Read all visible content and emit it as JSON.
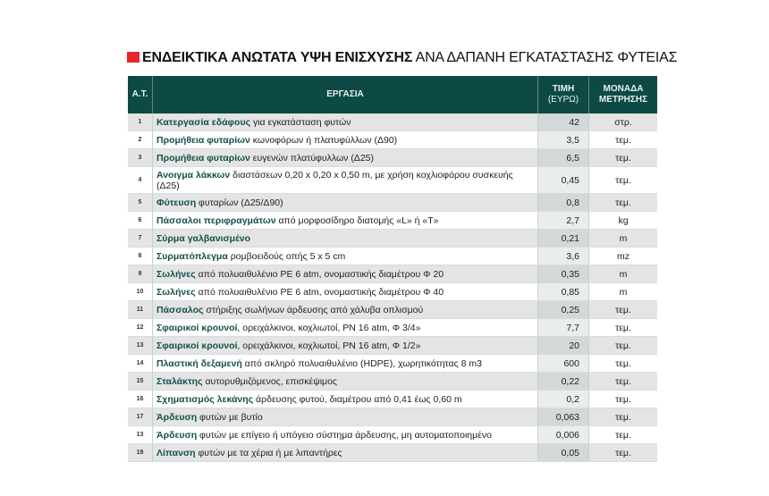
{
  "title": {
    "bold": "ΕΝΔΕΙΚΤΙΚΑ ΑΝΩΤΑΤΑ ΥΨΗ ΕΝΙΣΧΥΣΗΣ",
    "regular": "ΑΝΑ ΔΑΠΑΝΗ ΕΓΚΑΤΑΣΤΑΣΗΣ ΦΥΤΕΙΑΣ",
    "accent": "#e8262b"
  },
  "header": {
    "at": "Α.Τ.",
    "task": "ΕΡΓΑΣΙΑ",
    "price_line1": "ΤΙΜΗ",
    "price_line2": "(ΕΥΡΩ)",
    "unit_line1": "ΜΟΝΑΔΑ",
    "unit_line2": "ΜΕΤΡΗΣΗΣ"
  },
  "rows": [
    {
      "num": "1",
      "bold": "Κατεργασία εδάφους",
      "rest": " για εγκατάσταση φυτών",
      "price": "42",
      "unit": "στρ."
    },
    {
      "num": "2",
      "bold": "Προμήθεια φυταρίων",
      "rest": " κωνοφόρων ή πλατυφύλλων (Δ90)",
      "price": "3,5",
      "unit": "τεμ."
    },
    {
      "num": "3",
      "bold": "Προμήθεια φυταρίων",
      "rest": " ευγενών πλατύφυλλων (Δ25)",
      "price": "6,5",
      "unit": "τεμ."
    },
    {
      "num": "4",
      "bold": "Ανοιγμα λάκκων",
      "rest": " διαστάσεων 0,20 x 0,20 x 0,50 m, με χρήση κοχλιοφόρου συσκευής (Δ25)",
      "price": "0,45",
      "unit": "τεμ."
    },
    {
      "num": "5",
      "bold": "Φύτευση",
      "rest": " φυταρίων (Δ25/Δ90)",
      "price": "0,8",
      "unit": "τεμ."
    },
    {
      "num": "6",
      "bold": "Πάσσαλοι περιφραγμάτων",
      "rest": " από μορφοσίδηρο διατομής «L» ή «T»",
      "price": "2,7",
      "unit": "kg"
    },
    {
      "num": "7",
      "bold": "Σύρμα γαλβανισμένο",
      "rest": "",
      "price": "0,21",
      "unit": "m"
    },
    {
      "num": "8",
      "bold": "Συρματόπλεγμα",
      "rest": " ρομβοειδούς οπής 5 x 5 cm",
      "price": "3,6",
      "unit": "mz"
    },
    {
      "num": "9",
      "bold": "Σωλήνες",
      "rest": " από πολυαιθυλένιο PE 6 atm, ονομαστικής διαμέτρου Φ 20",
      "price": "0,35",
      "unit": "m"
    },
    {
      "num": "10",
      "bold": "Σωλήνες",
      "rest": " από πολυαιθυλένιο PE 6 atm, ονομαστικής διαμέτρου Φ 40",
      "price": "0,85",
      "unit": "m"
    },
    {
      "num": "11",
      "bold": "Πάσσαλος",
      "rest": " στήριξης σωλήνων άρδευσης από χάλυβα οπλισμού",
      "price": "0,25",
      "unit": "τεμ."
    },
    {
      "num": "12",
      "bold": "Σφαιρικοί κρουνοί",
      "rest": ", ορειχάλκινοι, κοχλιωτοί, PN 16 atm, Φ 3/4»",
      "price": "7,7",
      "unit": "τεμ."
    },
    {
      "num": "13",
      "bold": "Σφαιρικοί κρουνοί",
      "rest": ", ορειχάλκινοι, κοχλιωτοί, PN 16 atm, Φ 1/2»",
      "price": "20",
      "unit": "τεμ."
    },
    {
      "num": "14",
      "bold": "Πλαστική δεξαμενή",
      "rest": " από σκληρό πολυαιθυλένιο (HDPE), χωρητικότητας 8 m3",
      "price": "600",
      "unit": "τεμ."
    },
    {
      "num": "15",
      "bold": "Σταλάκτης",
      "rest": " αυτορυθμιζόμενος, επισκέψιμος",
      "price": "0,22",
      "unit": "τεμ."
    },
    {
      "num": "16",
      "bold": "Σχηματισμός λεκάνης",
      "rest": " άρδευσης φυτού, διαμέτρου από 0,41 έως 0,60 m",
      "price": "0,2",
      "unit": "τεμ."
    },
    {
      "num": "17",
      "bold": "Άρδευση",
      "rest": " φυτών με βυτίο",
      "price": "0,063",
      "unit": "τεμ."
    },
    {
      "num": "13",
      "bold": "Άρδευση",
      "rest": " φυτών με επίγειο ή υπόγειο σύστημα άρδευσης, μη αυτοματοποιημένο",
      "price": "0,006",
      "unit": "τεμ."
    },
    {
      "num": "19",
      "bold": "Λίπανση",
      "rest": " φυτών με τα χέρια ή με λιπαντήρες",
      "price": "0,05",
      "unit": "τεμ."
    }
  ]
}
